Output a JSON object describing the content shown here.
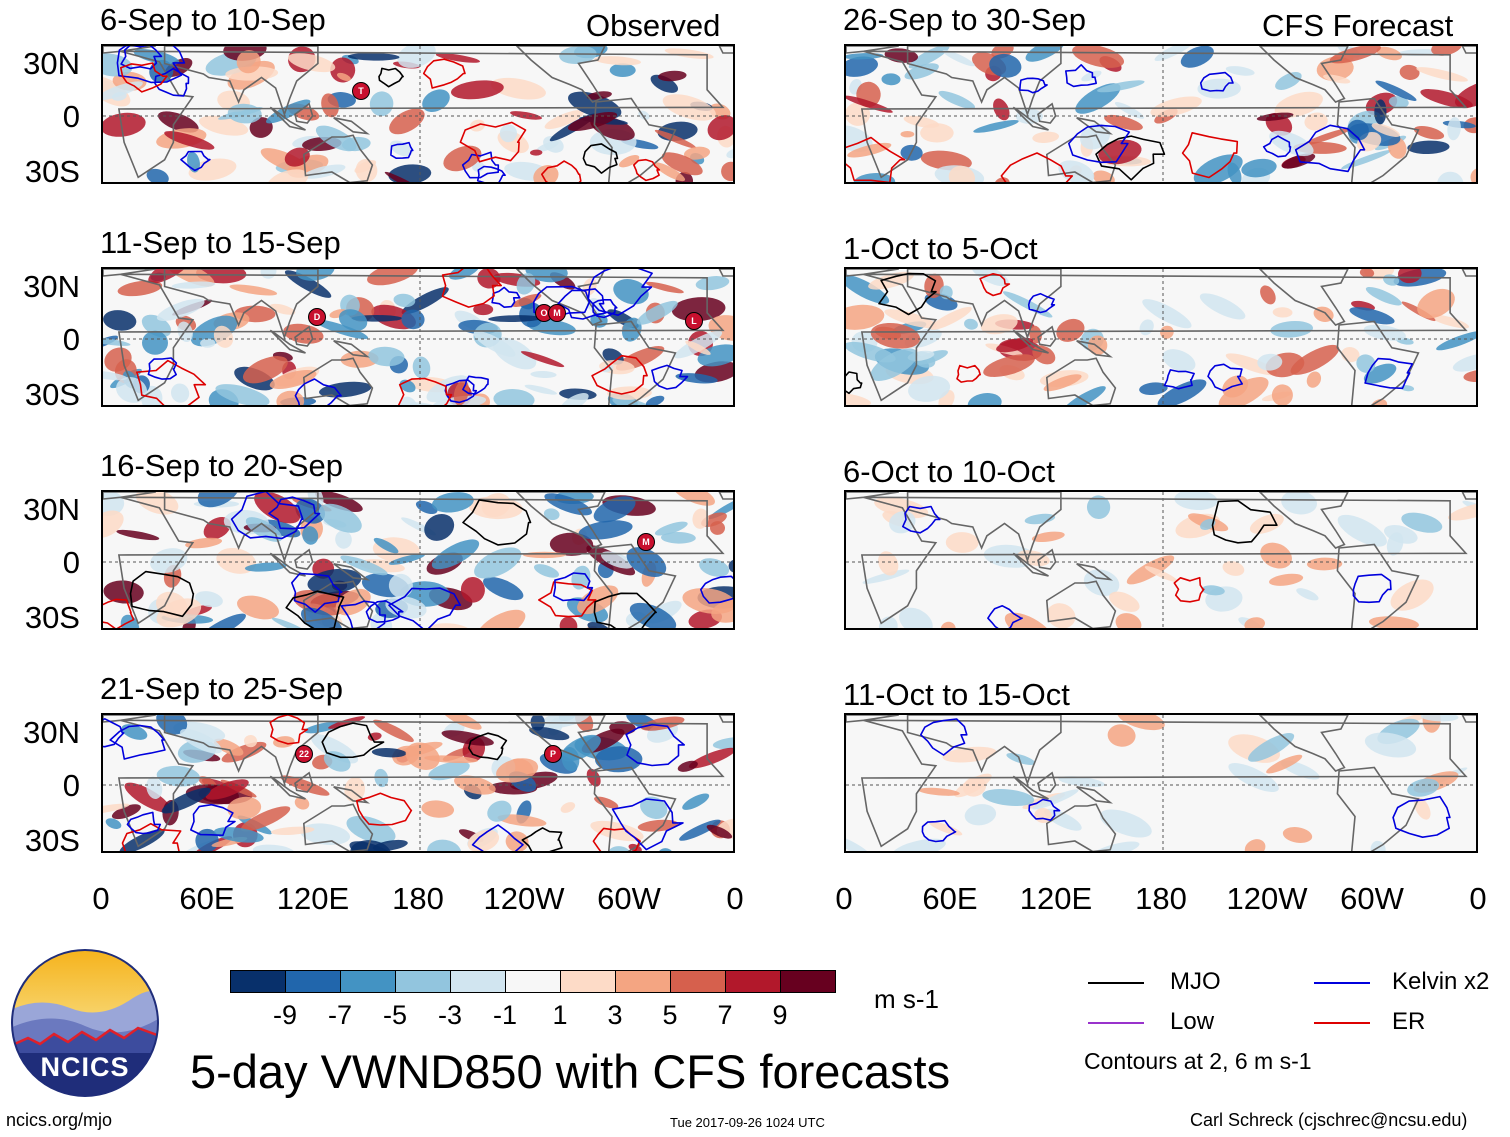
{
  "figure": {
    "title": "5-day VWND850 with CFS forecasts",
    "left_column_label": "Observed",
    "right_column_label": "CFS Forecast"
  },
  "panels_observed": [
    {
      "title": "6-Sep to 10-Sep",
      "storm_labels": [
        "T"
      ]
    },
    {
      "title": "11-Sep to 15-Sep",
      "storm_labels": [
        "D",
        "O",
        "M",
        "L"
      ]
    },
    {
      "title": "16-Sep to 20-Sep",
      "storm_labels": [
        "M"
      ]
    },
    {
      "title": "21-Sep to 25-Sep",
      "storm_labels": [
        "22",
        "P"
      ]
    }
  ],
  "panels_forecast": [
    {
      "title": "26-Sep to 30-Sep"
    },
    {
      "title": "1-Oct to 5-Oct"
    },
    {
      "title": "6-Oct to 10-Oct"
    },
    {
      "title": "11-Oct to 15-Oct"
    }
  ],
  "lat_labels": [
    "30N",
    "0",
    "30S"
  ],
  "lon_labels": [
    "0",
    "60E",
    "120E",
    "180",
    "120W",
    "60W",
    "0"
  ],
  "colorbar": {
    "ticks": [
      "-9",
      "-7",
      "-5",
      "-3",
      "-1",
      "1",
      "3",
      "5",
      "7",
      "9"
    ],
    "colors": [
      "#08306b",
      "#2166ac",
      "#4393c3",
      "#92c5de",
      "#d1e5f0",
      "#f7f7f7",
      "#fddbc7",
      "#f4a582",
      "#d6604d",
      "#b2182b",
      "#67001f"
    ],
    "units": "m s-1"
  },
  "legend": {
    "items": [
      {
        "label": "MJO",
        "color": "#000000"
      },
      {
        "label": "Kelvin x2",
        "color": "#0000dd"
      },
      {
        "label": "Low",
        "color": "#9933cc"
      },
      {
        "label": "ER",
        "color": "#dd0000"
      }
    ],
    "note": "Contours at 2, 6 m s-1"
  },
  "logo": {
    "text": "NCICS"
  },
  "footer": {
    "url": "ncics.org/mjo",
    "timestamp": "Tue 2017-09-26 1024 UTC",
    "author": "Carl Schreck (cjschrec@ncsu.edu)"
  }
}
